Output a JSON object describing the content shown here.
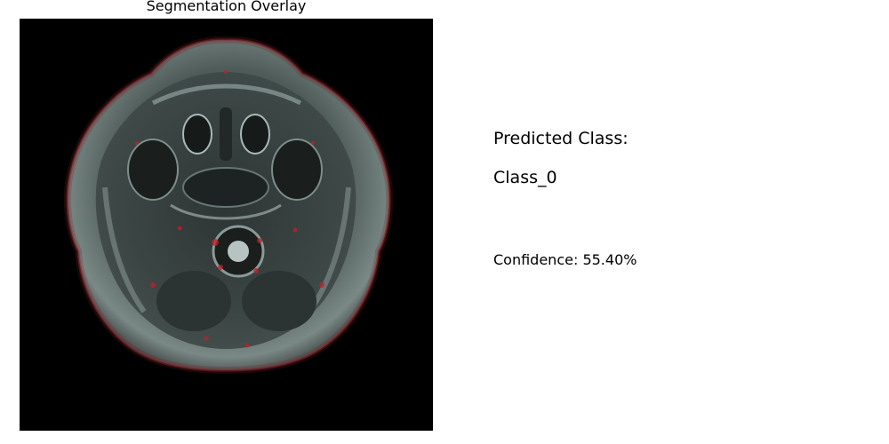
{
  "figure": {
    "overlay_title": "Segmentation Overlay"
  },
  "prediction": {
    "label": "Predicted Class:",
    "value": "Class_0",
    "confidence_text": "Confidence: 55.40%"
  },
  "colors": {
    "scan_background": "#000000",
    "tissue": "#5f6f6d",
    "overlay_tint": "#c0202a"
  }
}
